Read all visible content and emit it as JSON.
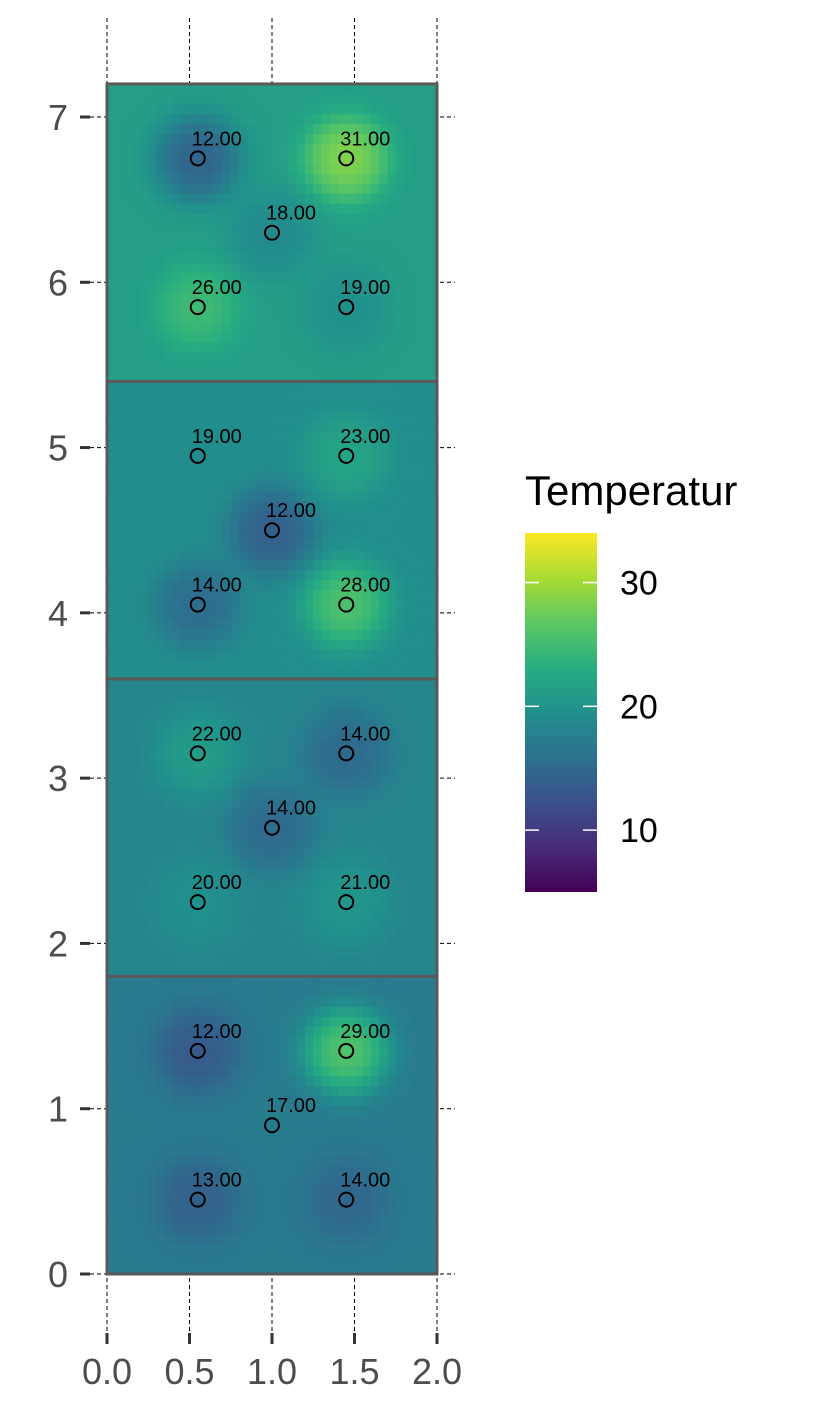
{
  "chart_data": {
    "type": "heatmap",
    "title": "",
    "xlabel": "",
    "ylabel": "",
    "xlim": [
      0,
      2
    ],
    "ylim": [
      0,
      7.2
    ],
    "x_ticks": [
      "0.0",
      "0.5",
      "1.0",
      "1.5",
      "2.0"
    ],
    "y_ticks": [
      "0",
      "1",
      "2",
      "3",
      "4",
      "5",
      "6",
      "7"
    ],
    "grid": "dashed vertical lines, short dashed tick marks",
    "panels": [
      {
        "ymin": 0,
        "ymax": 1.8
      },
      {
        "ymin": 1.8,
        "ymax": 3.6
      },
      {
        "ymin": 3.6,
        "ymax": 5.4
      },
      {
        "ymin": 5.4,
        "ymax": 7.2
      }
    ],
    "points": [
      {
        "x": 0.55,
        "y": 0.45,
        "value": 13,
        "label": "13.00"
      },
      {
        "x": 1.45,
        "y": 0.45,
        "value": 14,
        "label": "14.00"
      },
      {
        "x": 1.0,
        "y": 0.9,
        "value": 17,
        "label": "17.00"
      },
      {
        "x": 0.55,
        "y": 1.35,
        "value": 12,
        "label": "12.00"
      },
      {
        "x": 1.45,
        "y": 1.35,
        "value": 29,
        "label": "29.00"
      },
      {
        "x": 0.55,
        "y": 2.25,
        "value": 20,
        "label": "20.00"
      },
      {
        "x": 1.45,
        "y": 2.25,
        "value": 21,
        "label": "21.00"
      },
      {
        "x": 1.0,
        "y": 2.7,
        "value": 14,
        "label": "14.00"
      },
      {
        "x": 0.55,
        "y": 3.15,
        "value": 22,
        "label": "22.00"
      },
      {
        "x": 1.45,
        "y": 3.15,
        "value": 14,
        "label": "14.00"
      },
      {
        "x": 0.55,
        "y": 4.05,
        "value": 14,
        "label": "14.00"
      },
      {
        "x": 1.45,
        "y": 4.05,
        "value": 28,
        "label": "28.00"
      },
      {
        "x": 1.0,
        "y": 4.5,
        "value": 12,
        "label": "12.00"
      },
      {
        "x": 0.55,
        "y": 4.95,
        "value": 19,
        "label": "19.00"
      },
      {
        "x": 1.45,
        "y": 4.95,
        "value": 23,
        "label": "23.00"
      },
      {
        "x": 0.55,
        "y": 5.85,
        "value": 26,
        "label": "26.00"
      },
      {
        "x": 1.45,
        "y": 5.85,
        "value": 19,
        "label": "19.00"
      },
      {
        "x": 1.0,
        "y": 6.3,
        "value": 18,
        "label": "18.00"
      },
      {
        "x": 0.55,
        "y": 6.75,
        "value": 12,
        "label": "12.00"
      },
      {
        "x": 1.45,
        "y": 6.75,
        "value": 31,
        "label": "31.00"
      }
    ],
    "legend": {
      "title": "Temperatur",
      "placement": "right",
      "min": 5,
      "max": 34,
      "breaks": [
        10,
        20,
        30
      ],
      "break_labels": [
        "10",
        "20",
        "30"
      ],
      "palette": "viridis"
    }
  }
}
